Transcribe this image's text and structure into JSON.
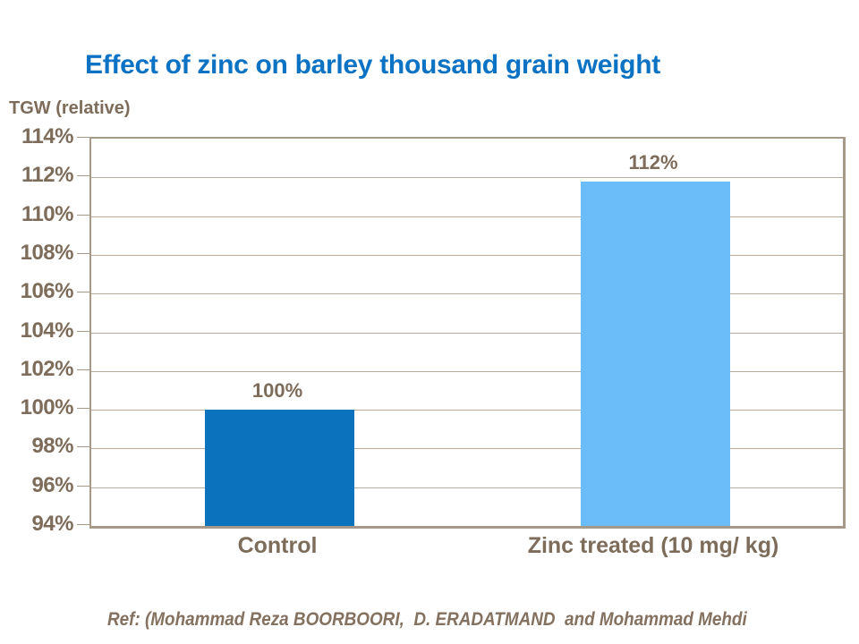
{
  "header": {
    "title": "Effect of zinc on barley thousand grain weight"
  },
  "chart_data": {
    "type": "bar",
    "title": "Effect of zinc on barley thousand grain weight",
    "ylabel": "TGW (relative)",
    "xlabel": "",
    "categories": [
      "Control",
      "Zinc treated (10 mg/ kg)"
    ],
    "values": [
      100,
      112
    ],
    "data_labels": [
      "100%",
      "112%"
    ],
    "bar_render_values": [
      100,
      111.8
    ],
    "ylim": [
      94,
      114
    ],
    "ytick_step": 2,
    "ytick_labels": [
      "94%",
      "96%",
      "98%",
      "100%",
      "102%",
      "104%",
      "106%",
      "108%",
      "110%",
      "112%",
      "114%"
    ],
    "grid": true,
    "legend": false,
    "bar_colors": [
      "#0B72BE",
      "#6ABDF8"
    ],
    "colors": {
      "title": "#0B72C4",
      "axis_text": "#7E6C5A",
      "plot_border": "#A69988",
      "gridline": "#B7AC9C",
      "background": "#FFFFFF"
    }
  },
  "footer": {
    "reference": "Ref: (Mohammad Reza BOORBOORI,  D. ERADATMAND  and Mohammad Mehdi"
  }
}
